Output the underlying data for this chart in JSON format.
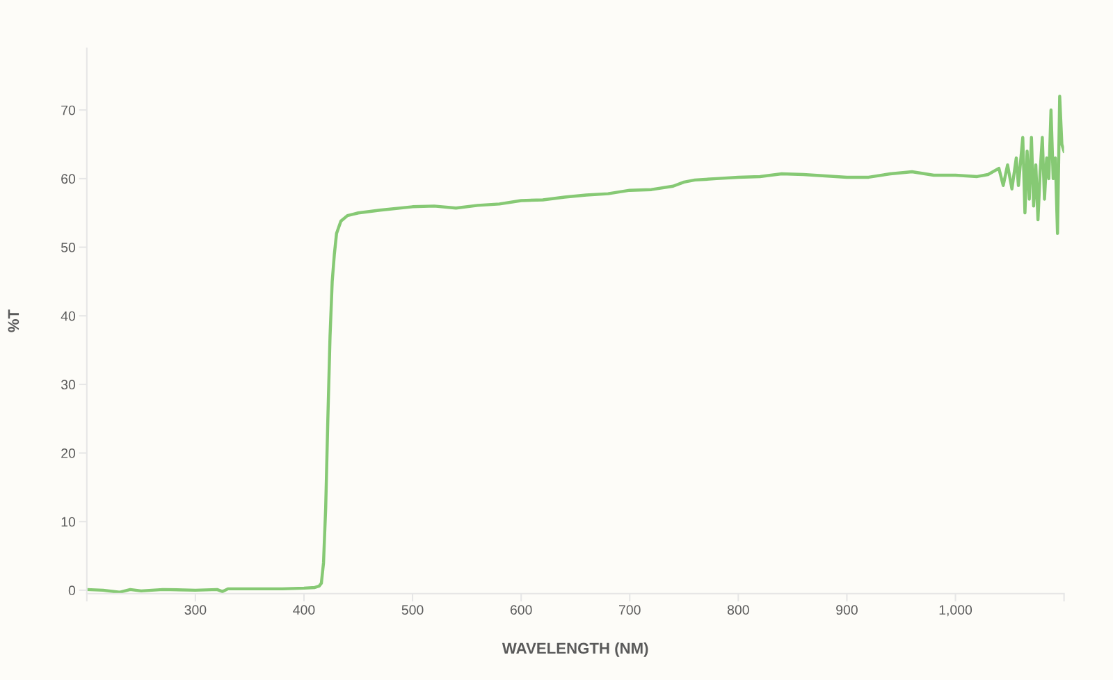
{
  "chart_data": {
    "type": "line",
    "xlabel": "WAVELENGTH (NM)",
    "ylabel": "%T",
    "xlim": [
      200,
      1100
    ],
    "ylim": [
      -0.5,
      79
    ],
    "xticks": [
      {
        "value": 200,
        "label": null
      },
      300,
      400,
      500,
      600,
      700,
      800,
      900,
      {
        "value": 1000,
        "label": "1,000"
      },
      {
        "value": 1100,
        "label": null
      }
    ],
    "yticks": [
      0,
      10,
      20,
      30,
      40,
      50,
      60,
      70
    ],
    "grid": false,
    "marker": "none",
    "line_style": "solid",
    "series": [
      {
        "color": "#86c974",
        "x": [
          200,
          215,
          230,
          240,
          250,
          270,
          300,
          320,
          325,
          330,
          350,
          380,
          400,
          410,
          414,
          416,
          418,
          420,
          422,
          424,
          426,
          428,
          430,
          434,
          440,
          450,
          470,
          500,
          520,
          540,
          560,
          580,
          600,
          620,
          640,
          660,
          680,
          700,
          720,
          740,
          750,
          760,
          780,
          800,
          820,
          840,
          860,
          880,
          900,
          920,
          940,
          960,
          980,
          1000,
          1020,
          1030,
          1040,
          1044,
          1048,
          1052,
          1056,
          1058,
          1062,
          1064,
          1066,
          1068,
          1070,
          1072,
          1074,
          1076,
          1078,
          1080,
          1082,
          1084,
          1086,
          1088,
          1090,
          1092,
          1094,
          1096,
          1098,
          1100
        ],
        "values": [
          0.1,
          0.0,
          -0.3,
          0.1,
          -0.1,
          0.1,
          0.0,
          0.1,
          -0.2,
          0.2,
          0.2,
          0.2,
          0.3,
          0.4,
          0.6,
          1,
          4,
          12,
          25,
          37,
          45,
          49,
          52,
          53.8,
          54.6,
          55,
          55.4,
          55.9,
          56,
          55.7,
          56.1,
          56.3,
          56.8,
          56.9,
          57.3,
          57.6,
          57.8,
          58.3,
          58.4,
          58.9,
          59.5,
          59.8,
          60,
          60.2,
          60.3,
          60.7,
          60.6,
          60.4,
          60.2,
          60.2,
          60.7,
          61,
          60.5,
          60.5,
          60.3,
          60.6,
          61.5,
          59,
          62,
          58.5,
          63,
          59,
          66,
          55,
          64,
          57,
          66,
          56,
          62,
          54,
          61,
          66,
          57,
          63,
          60,
          70,
          60,
          63,
          52,
          72,
          65,
          64
        ]
      }
    ]
  }
}
